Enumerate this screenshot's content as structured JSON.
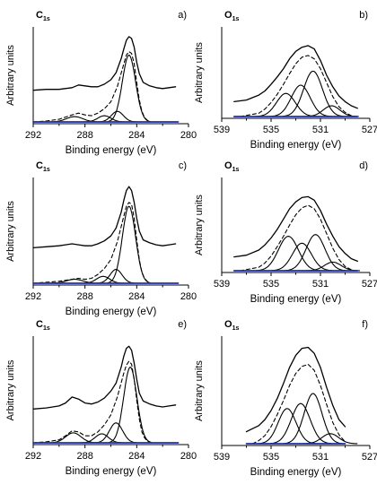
{
  "page": {
    "background": "#ffffff"
  },
  "style": {
    "colors": {
      "curve": "#000000",
      "baseline": "#1f2fa8",
      "axis": "#000000"
    }
  },
  "chart_data": [
    {
      "id": "a",
      "type": "line",
      "panel_label": "a)",
      "element": "C",
      "subscript": "1s",
      "xlabel": "Binding energy (eV)",
      "ylabel": "Arbitrary units",
      "xlim": [
        292,
        280
      ],
      "ylim": [
        0,
        1
      ],
      "xticks": [
        292,
        288,
        284,
        280
      ],
      "xtick_labels": [
        "292",
        "288",
        "284",
        "280"
      ],
      "grid": false,
      "legend": "none",
      "series": [
        {
          "role": "raw",
          "style": "solid",
          "x": [
            292,
            291,
            290,
            289,
            288.5,
            288,
            287.5,
            287,
            286.5,
            286,
            285.6,
            285.2,
            285,
            284.8,
            284.6,
            284.4,
            284.2,
            284,
            283.8,
            283.5,
            283,
            282.5,
            282,
            281.5,
            281
          ],
          "y": [
            0.36,
            0.37,
            0.37,
            0.39,
            0.42,
            0.41,
            0.4,
            0.4,
            0.43,
            0.48,
            0.56,
            0.72,
            0.83,
            0.93,
            0.97,
            0.95,
            0.85,
            0.68,
            0.55,
            0.45,
            0.41,
            0.39,
            0.38,
            0.39,
            0.4
          ]
        },
        {
          "role": "envelope",
          "style": "dashed",
          "x": [
            292,
            291,
            290,
            289,
            288.5,
            288,
            287.5,
            287,
            286.5,
            286,
            285.5,
            285,
            284.8,
            284.6,
            284.4,
            284.2,
            284,
            283.8,
            283.6,
            283.4,
            283.2,
            283
          ],
          "y": [
            0,
            0.01,
            0.03,
            0.08,
            0.1,
            0.08,
            0.07,
            0.1,
            0.15,
            0.23,
            0.4,
            0.66,
            0.76,
            0.8,
            0.78,
            0.66,
            0.45,
            0.25,
            0.12,
            0.05,
            0.02,
            0
          ]
        },
        {
          "role": "component",
          "style": "solid",
          "center": 284.6,
          "fwhm": 1.2,
          "height": 0.76
        },
        {
          "role": "component",
          "style": "solid",
          "center": 285.5,
          "fwhm": 1.1,
          "height": 0.12
        },
        {
          "role": "component",
          "style": "solid",
          "center": 286.5,
          "fwhm": 1.2,
          "height": 0.07
        },
        {
          "role": "component",
          "style": "solid",
          "center": 288.8,
          "fwhm": 1.5,
          "height": 0.06
        },
        {
          "role": "baseline",
          "style": "solid",
          "x": [
            292,
            280.8
          ],
          "y": [
            0,
            0
          ]
        }
      ]
    },
    {
      "id": "b",
      "type": "line",
      "panel_label": "b)",
      "element": "O",
      "subscript": "1s",
      "xlabel": "Binding energy (eV)",
      "ylabel": "Arbitrary units",
      "xlim": [
        539,
        527
      ],
      "ylim": [
        0,
        1
      ],
      "xticks": [
        539,
        535,
        531,
        527
      ],
      "xtick_labels": [
        "539",
        "535",
        "531",
        "527"
      ],
      "grid": false,
      "legend": "none",
      "series": [
        {
          "role": "raw",
          "style": "solid",
          "x": [
            538,
            537,
            536,
            535.5,
            535,
            534.5,
            534,
            533.5,
            533,
            532.5,
            532,
            531.5,
            531,
            530.5,
            530,
            529.5,
            529,
            528.5,
            528
          ],
          "y": [
            0.18,
            0.2,
            0.26,
            0.31,
            0.39,
            0.48,
            0.58,
            0.7,
            0.79,
            0.84,
            0.86,
            0.82,
            0.68,
            0.5,
            0.36,
            0.25,
            0.18,
            0.13,
            0.1
          ]
        },
        {
          "role": "envelope",
          "style": "dashed",
          "x": [
            537.5,
            536,
            535.5,
            535,
            534.5,
            534,
            533.5,
            533,
            532.5,
            532,
            531.5,
            531,
            530.5,
            530,
            529.5,
            529,
            528.5
          ],
          "y": [
            0,
            0.04,
            0.09,
            0.17,
            0.27,
            0.39,
            0.52,
            0.64,
            0.72,
            0.74,
            0.7,
            0.58,
            0.41,
            0.24,
            0.12,
            0.05,
            0.01
          ]
        },
        {
          "role": "component",
          "style": "solid",
          "center": 533.8,
          "fwhm": 1.8,
          "height": 0.28
        },
        {
          "role": "component",
          "style": "solid",
          "center": 532.6,
          "fwhm": 1.8,
          "height": 0.38
        },
        {
          "role": "component",
          "style": "solid",
          "center": 531.6,
          "fwhm": 1.8,
          "height": 0.55
        },
        {
          "role": "component",
          "style": "solid",
          "center": 530.1,
          "fwhm": 1.6,
          "height": 0.13
        },
        {
          "role": "baseline",
          "style": "solid",
          "x": [
            538,
            528
          ],
          "y": [
            0,
            0
          ]
        }
      ]
    },
    {
      "id": "c",
      "type": "line",
      "panel_label": "c)",
      "element": "C",
      "subscript": "1s",
      "xlabel": "Binding energy (eV)",
      "ylabel": "Arbitrary units",
      "xlim": [
        292,
        280
      ],
      "ylim": [
        0,
        1
      ],
      "xticks": [
        292,
        288,
        284,
        280
      ],
      "xtick_labels": [
        "292",
        "288",
        "284",
        "280"
      ],
      "grid": false,
      "legend": "none",
      "series": [
        {
          "role": "raw",
          "style": "solid",
          "x": [
            292,
            291,
            290,
            289.5,
            289,
            288.5,
            288,
            287.5,
            287,
            286.5,
            286,
            285.6,
            285.2,
            285,
            284.8,
            284.6,
            284.4,
            284.2,
            284,
            283.8,
            283.5,
            283,
            282.5,
            282,
            281.5,
            281
          ],
          "y": [
            0.36,
            0.37,
            0.38,
            0.39,
            0.4,
            0.39,
            0.38,
            0.38,
            0.4,
            0.43,
            0.48,
            0.56,
            0.72,
            0.84,
            0.94,
            0.98,
            0.94,
            0.82,
            0.66,
            0.53,
            0.44,
            0.41,
            0.39,
            0.38,
            0.39,
            0.4
          ]
        },
        {
          "role": "envelope",
          "style": "dashed",
          "x": [
            292,
            291,
            290,
            289,
            288.5,
            288,
            287.5,
            287,
            286.5,
            286,
            285.5,
            285,
            284.8,
            284.6,
            284.4,
            284.2,
            284,
            283.8,
            283.6,
            283.4,
            283.2,
            283
          ],
          "y": [
            0,
            0.01,
            0.02,
            0.04,
            0.05,
            0.04,
            0.05,
            0.09,
            0.15,
            0.24,
            0.42,
            0.68,
            0.78,
            0.82,
            0.8,
            0.66,
            0.44,
            0.24,
            0.11,
            0.05,
            0.02,
            0
          ]
        },
        {
          "role": "component",
          "style": "solid",
          "center": 284.6,
          "fwhm": 1.2,
          "height": 0.78
        },
        {
          "role": "component",
          "style": "solid",
          "center": 285.6,
          "fwhm": 1.1,
          "height": 0.14
        },
        {
          "role": "component",
          "style": "solid",
          "center": 286.6,
          "fwhm": 1.2,
          "height": 0.07
        },
        {
          "role": "component",
          "style": "solid",
          "center": 288.8,
          "fwhm": 1.5,
          "height": 0.04
        },
        {
          "role": "baseline",
          "style": "solid",
          "x": [
            292,
            280.8
          ],
          "y": [
            0,
            0
          ]
        }
      ]
    },
    {
      "id": "d",
      "type": "line",
      "panel_label": "d)",
      "element": "O",
      "subscript": "1s",
      "xlabel": "Binding energy (eV)",
      "ylabel": "Arbitrary units",
      "xlim": [
        539,
        527
      ],
      "ylim": [
        0,
        1
      ],
      "xticks": [
        539,
        535,
        531,
        527
      ],
      "xtick_labels": [
        "539",
        "535",
        "531",
        "527"
      ],
      "grid": false,
      "legend": "none",
      "series": [
        {
          "role": "raw",
          "style": "solid",
          "x": [
            538,
            537,
            536,
            535.5,
            535,
            534.5,
            534,
            533.5,
            533,
            532.5,
            532,
            531.5,
            531,
            530.5,
            530,
            529.5,
            529,
            528.5,
            528
          ],
          "y": [
            0.16,
            0.18,
            0.24,
            0.3,
            0.38,
            0.48,
            0.6,
            0.72,
            0.8,
            0.85,
            0.86,
            0.82,
            0.7,
            0.54,
            0.4,
            0.28,
            0.2,
            0.14,
            0.11
          ]
        },
        {
          "role": "envelope",
          "style": "dashed",
          "x": [
            537.5,
            536,
            535.5,
            535,
            534.5,
            534,
            533.5,
            533,
            532.5,
            532,
            531.5,
            531,
            530.5,
            530,
            529.5,
            529,
            528.5
          ],
          "y": [
            0,
            0.04,
            0.09,
            0.17,
            0.28,
            0.4,
            0.53,
            0.65,
            0.73,
            0.76,
            0.72,
            0.6,
            0.43,
            0.26,
            0.13,
            0.05,
            0.01
          ]
        },
        {
          "role": "component",
          "style": "solid",
          "center": 533.6,
          "fwhm": 1.9,
          "height": 0.4
        },
        {
          "role": "component",
          "style": "solid",
          "center": 532.5,
          "fwhm": 1.8,
          "height": 0.32
        },
        {
          "role": "component",
          "style": "solid",
          "center": 531.4,
          "fwhm": 1.8,
          "height": 0.42
        },
        {
          "role": "component",
          "style": "solid",
          "center": 530.0,
          "fwhm": 1.6,
          "height": 0.1
        },
        {
          "role": "baseline",
          "style": "solid",
          "x": [
            538,
            528
          ],
          "y": [
            0,
            0
          ]
        }
      ]
    },
    {
      "id": "e",
      "type": "line",
      "panel_label": "e)",
      "element": "C",
      "subscript": "1s",
      "xlabel": "Binding energy (eV)",
      "ylabel": "Arbitrary units",
      "xlim": [
        292,
        280
      ],
      "ylim": [
        0,
        1
      ],
      "xticks": [
        292,
        288,
        284,
        280
      ],
      "xtick_labels": [
        "292",
        "288",
        "284",
        "280"
      ],
      "grid": false,
      "legend": "none",
      "series": [
        {
          "role": "raw",
          "style": "solid",
          "x": [
            292,
            291,
            290,
            289.5,
            289,
            288.5,
            288,
            287.5,
            287,
            286.5,
            286,
            285.6,
            285.2,
            285,
            284.8,
            284.6,
            284.4,
            284.2,
            284,
            283.8,
            283.5,
            283,
            282.5,
            282,
            281.5,
            281
          ],
          "y": [
            0.34,
            0.35,
            0.37,
            0.4,
            0.46,
            0.44,
            0.4,
            0.39,
            0.41,
            0.45,
            0.52,
            0.6,
            0.76,
            0.87,
            0.95,
            0.97,
            0.93,
            0.8,
            0.64,
            0.5,
            0.42,
            0.39,
            0.37,
            0.36,
            0.37,
            0.38
          ]
        },
        {
          "role": "envelope",
          "style": "dashed",
          "x": [
            292,
            291,
            290,
            289.5,
            289,
            288.5,
            288,
            287.5,
            287,
            286.5,
            286,
            285.5,
            285,
            284.8,
            284.6,
            284.4,
            284.2,
            284,
            283.8,
            283.6,
            283.4,
            283.2,
            283
          ],
          "y": [
            0,
            0.01,
            0.03,
            0.07,
            0.12,
            0.11,
            0.07,
            0.07,
            0.11,
            0.18,
            0.28,
            0.46,
            0.7,
            0.78,
            0.82,
            0.79,
            0.64,
            0.43,
            0.24,
            0.11,
            0.05,
            0.02,
            0
          ]
        },
        {
          "role": "component",
          "style": "solid",
          "center": 284.5,
          "fwhm": 1.2,
          "height": 0.76
        },
        {
          "role": "component",
          "style": "solid",
          "center": 285.6,
          "fwhm": 1.2,
          "height": 0.2
        },
        {
          "role": "component",
          "style": "solid",
          "center": 286.7,
          "fwhm": 1.2,
          "height": 0.09
        },
        {
          "role": "component",
          "style": "solid",
          "center": 288.9,
          "fwhm": 1.4,
          "height": 0.1
        },
        {
          "role": "baseline",
          "style": "solid",
          "x": [
            292,
            280.8
          ],
          "y": [
            0,
            0
          ]
        }
      ]
    },
    {
      "id": "f",
      "type": "line",
      "panel_label": "f)",
      "element": "O",
      "subscript": "1s",
      "xlabel": "Binding energy (eV)",
      "ylabel": "Arbitrary units",
      "xlim": [
        539,
        527
      ],
      "ylim": [
        0,
        1
      ],
      "xticks": [
        539,
        535,
        531,
        527
      ],
      "xtick_labels": [
        "539",
        "535",
        "531",
        "527"
      ],
      "grid": false,
      "legend": "none",
      "series": [
        {
          "role": "raw",
          "style": "solid",
          "x": [
            537,
            536,
            535.5,
            535,
            534.5,
            534,
            533.5,
            533,
            532.5,
            532,
            531.5,
            531,
            530.5,
            530,
            529.5,
            529
          ],
          "y": [
            0.12,
            0.18,
            0.24,
            0.33,
            0.45,
            0.6,
            0.76,
            0.88,
            0.95,
            0.96,
            0.9,
            0.76,
            0.56,
            0.38,
            0.24,
            0.17
          ]
        },
        {
          "role": "envelope",
          "style": "dashed",
          "x": [
            536.5,
            536,
            535.5,
            535,
            534.5,
            534,
            533.5,
            533,
            532.5,
            532,
            531.5,
            531,
            530.5,
            530,
            529.5,
            529
          ],
          "y": [
            0,
            0.03,
            0.08,
            0.17,
            0.29,
            0.43,
            0.58,
            0.7,
            0.77,
            0.79,
            0.73,
            0.58,
            0.39,
            0.21,
            0.09,
            0.02
          ]
        },
        {
          "role": "component",
          "style": "solid",
          "center": 533.7,
          "fwhm": 1.7,
          "height": 0.35
        },
        {
          "role": "component",
          "style": "solid",
          "center": 532.6,
          "fwhm": 1.8,
          "height": 0.4
        },
        {
          "role": "component",
          "style": "solid",
          "center": 531.6,
          "fwhm": 1.7,
          "height": 0.5
        },
        {
          "role": "component",
          "style": "solid",
          "center": 530.2,
          "fwhm": 1.6,
          "height": 0.1
        },
        {
          "role": "baseline",
          "style": "solid",
          "x": [
            537,
            529
          ],
          "y": [
            0,
            0
          ]
        }
      ]
    }
  ]
}
